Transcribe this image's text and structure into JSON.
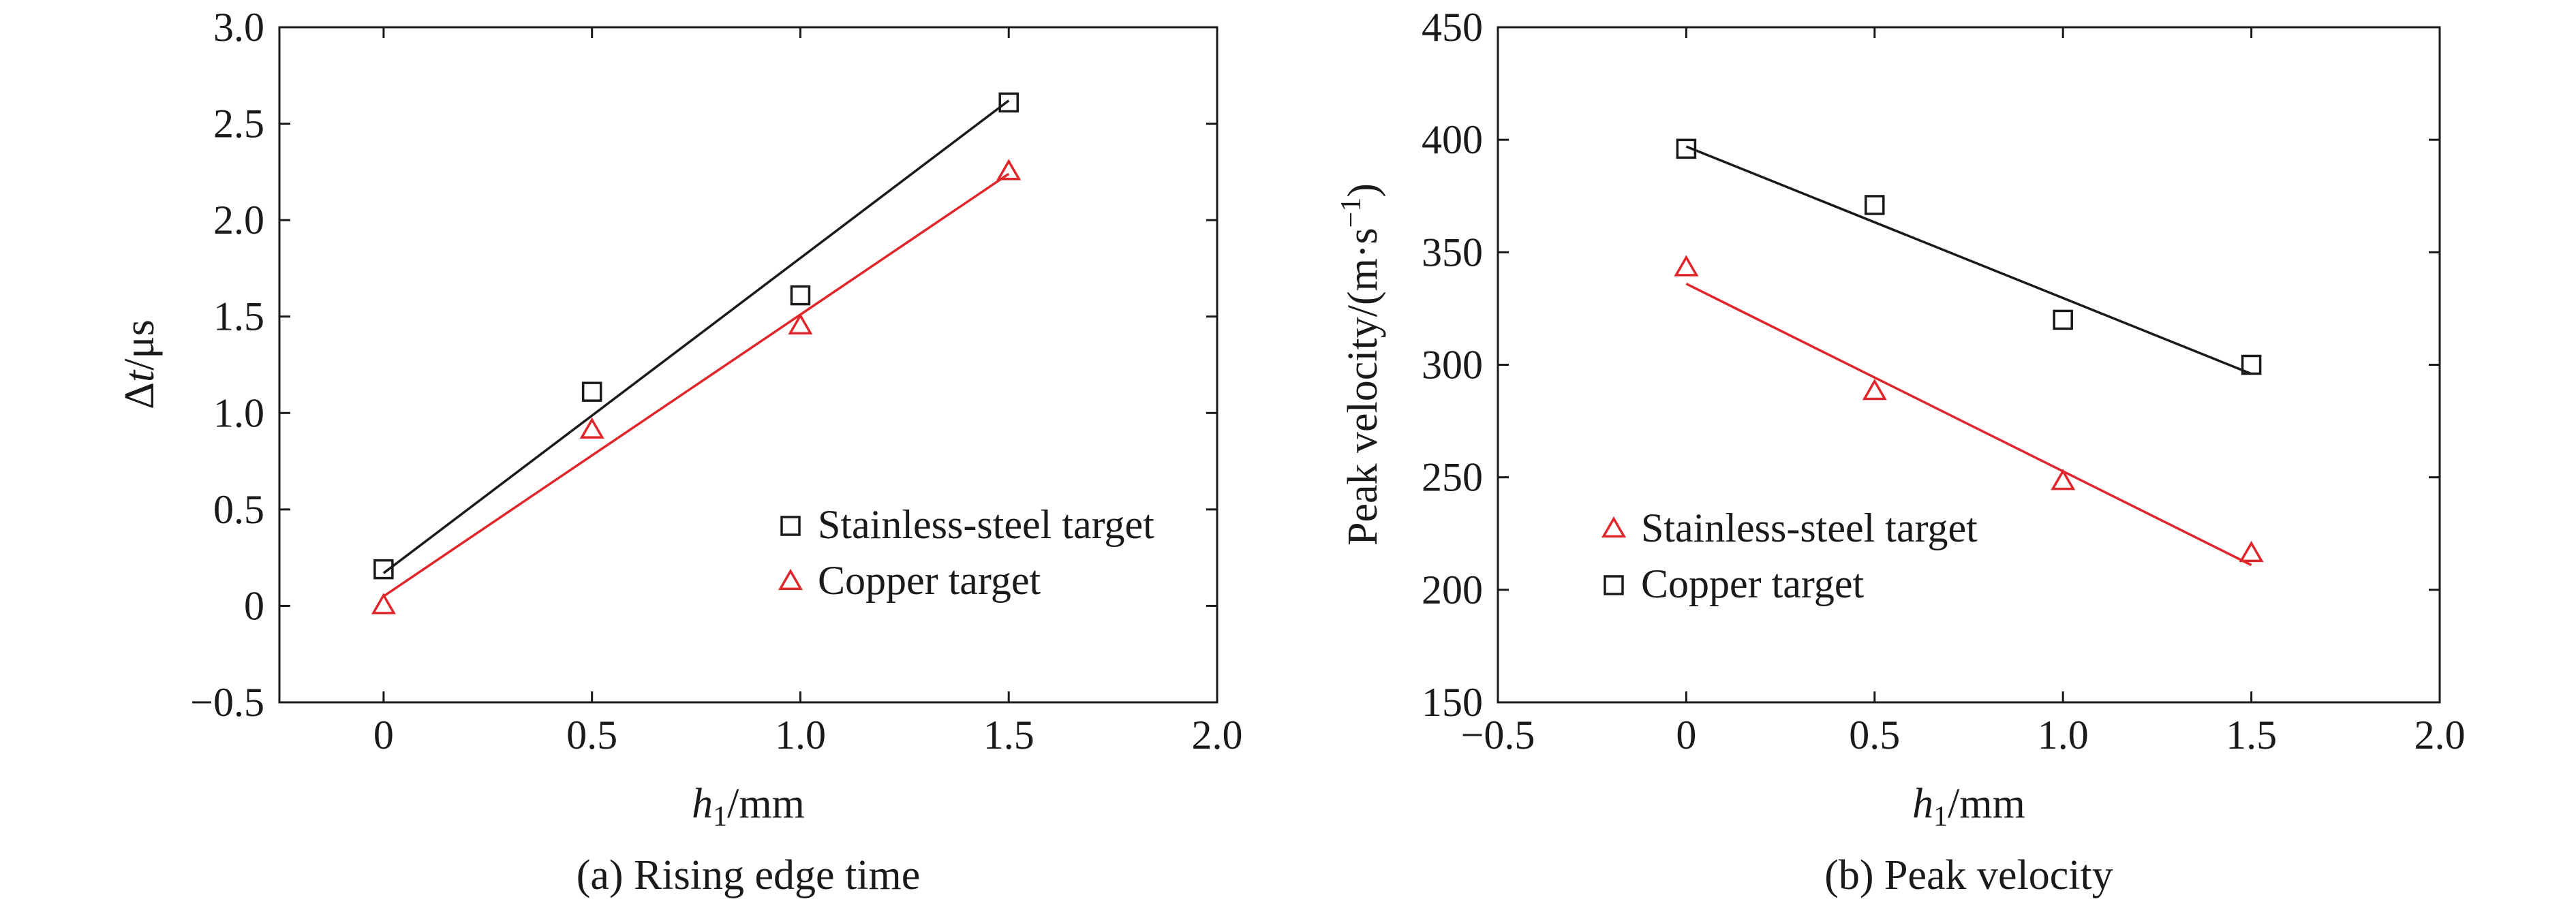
{
  "chart_data": [
    {
      "type": "scatter",
      "caption": "(a) Rising edge time",
      "xlabel": {
        "var": "h",
        "sub": "1",
        "unit": "/mm"
      },
      "ylabel": {
        "pre": "Δ",
        "var": "t",
        "unit": "/μs"
      },
      "xlim": [
        -0.25,
        2.0
      ],
      "ylim": [
        -0.5,
        3.0
      ],
      "xticks": [
        0,
        0.5,
        1.0,
        1.5,
        2.0
      ],
      "xtick_labels": [
        "0",
        "0.5",
        "1.0",
        "1.5",
        "2.0"
      ],
      "yticks": [
        -0.5,
        0,
        0.5,
        1.0,
        1.5,
        2.0,
        2.5,
        3.0
      ],
      "ytick_labels": [
        "−0.5",
        "0",
        "0.5",
        "1.0",
        "1.5",
        "2.0",
        "2.5",
        "3.0"
      ],
      "grid": false,
      "legend_position": "bottom-right",
      "series": [
        {
          "name": "Stainless-steel target",
          "marker": "square",
          "color": "#1a1a1a",
          "x": [
            0,
            0.5,
            1.0,
            1.5
          ],
          "y": [
            0.19,
            1.11,
            1.61,
            2.61
          ],
          "fit": [
            [
              0,
              0.17
            ],
            [
              1.5,
              2.62
            ]
          ]
        },
        {
          "name": "Copper target",
          "marker": "triangle",
          "color": "#e0262b",
          "x": [
            0,
            0.5,
            1.0,
            1.5
          ],
          "y": [
            0.0,
            0.91,
            1.45,
            2.25
          ],
          "fit": [
            [
              0,
              0.05
            ],
            [
              1.5,
              2.24
            ]
          ]
        }
      ]
    },
    {
      "type": "scatter",
      "caption": "(b) Peak velocity",
      "xlabel": {
        "var": "h",
        "sub": "1",
        "unit": "/mm"
      },
      "ylabel": {
        "text": "Peak velocity/(m·s",
        "sup": "−1",
        "close": ")"
      },
      "xlim": [
        -0.5,
        2.0
      ],
      "ylim": [
        150,
        450
      ],
      "xticks": [
        -0.5,
        0,
        0.5,
        1.0,
        1.5,
        2.0
      ],
      "xtick_labels": [
        "−0.5",
        "0",
        "0.5",
        "1.0",
        "1.5",
        "2.0"
      ],
      "yticks": [
        150,
        200,
        250,
        300,
        350,
        400,
        450
      ],
      "ytick_labels": [
        "150",
        "200",
        "250",
        "300",
        "350",
        "400",
        "450"
      ],
      "grid": false,
      "legend_position": "bottom-left",
      "series": [
        {
          "name": "Stainless-steel target",
          "marker": "triangle",
          "color": "#e0262b",
          "x": [
            0,
            0.5,
            1.0,
            1.5
          ],
          "y": [
            343,
            288,
            248,
            216
          ],
          "fit": [
            [
              0,
              336
            ],
            [
              1.5,
              211
            ]
          ]
        },
        {
          "name": "Copper target",
          "marker": "square",
          "color": "#1a1a1a",
          "x": [
            0,
            0.5,
            1.0,
            1.5
          ],
          "y": [
            396,
            371,
            320,
            300
          ],
          "fit": [
            [
              0,
              397
            ],
            [
              1.5,
              296
            ]
          ]
        }
      ]
    }
  ]
}
